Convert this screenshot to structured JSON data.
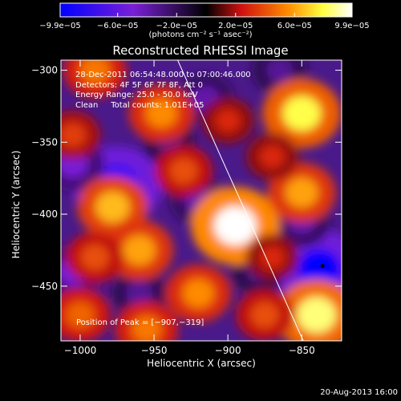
{
  "chart_data": {
    "type": "heatmap",
    "title": "Reconstructed RHESSI Image",
    "xlabel": "Heliocentric X (arcsec)",
    "ylabel": "Heliocentric Y (arcsec)",
    "xlim": [
      -1013,
      -823
    ],
    "ylim": [
      -488,
      -293
    ],
    "x_ticks": [
      -1000,
      -950,
      -900,
      -850
    ],
    "x_tick_labels": [
      "−1000",
      "−950",
      "−900",
      "−850"
    ],
    "y_ticks": [
      -300,
      -350,
      -400,
      -450
    ],
    "y_tick_labels": [
      "−300",
      "−350",
      "−400",
      "−450"
    ],
    "colorbar": {
      "range": [
        -9.9e-05,
        9.9e-05
      ],
      "ticks": [
        -9.9e-05,
        -6e-05,
        -2e-05,
        2e-05,
        6e-05,
        9.9e-05
      ],
      "tick_labels": [
        "−9.9e−05",
        "−6.0e−05",
        "−2.0e−05",
        "2.0e−05",
        "6.0e−05",
        "9.9e−05"
      ],
      "units_label": "(photons cm⁻² s⁻¹ asec⁻²)",
      "colors": [
        "#0000ff",
        "#7a1fd6",
        "#000000",
        "#d01010",
        "#ff8c00",
        "#ffff40",
        "#ffffff"
      ]
    },
    "annotations": [
      "28-Dec-2011 06:54:48.000 to 07:00:46.000",
      "Detectors: 4F 5F 6F 7F 8F, Att 0",
      "Energy Range: 25.0 - 50.0 keV",
      "Clean     Total counts: 1.01E+05"
    ],
    "peak_label": "Position of Peak = [−907,−319]",
    "peak_position": [
      -907,
      -319
    ],
    "limb_line": [
      [
        -934,
        -293
      ],
      [
        -849,
        -488
      ]
    ],
    "hot_spots": [
      {
        "x": -895,
        "y": -408,
        "value": 9.9e-05
      },
      {
        "x": -850,
        "y": -330,
        "value": 8e-05
      },
      {
        "x": -978,
        "y": -395,
        "value": 6.5e-05
      },
      {
        "x": -850,
        "y": -385,
        "value": 6e-05
      },
      {
        "x": -960,
        "y": -425,
        "value": 6e-05
      },
      {
        "x": -840,
        "y": -470,
        "value": 8.5e-05
      },
      {
        "x": -945,
        "y": -330,
        "value": 5.5e-05
      },
      {
        "x": -990,
        "y": -300,
        "value": 5e-05
      },
      {
        "x": -920,
        "y": -455,
        "value": 5.5e-05
      },
      {
        "x": -900,
        "y": -335,
        "value": 3e-05
      },
      {
        "x": -870,
        "y": -360,
        "value": 3e-05
      },
      {
        "x": -1005,
        "y": -345,
        "value": 3.5e-05
      },
      {
        "x": -1000,
        "y": -470,
        "value": 4.5e-05
      },
      {
        "x": -955,
        "y": -480,
        "value": 5e-05
      },
      {
        "x": -875,
        "y": -470,
        "value": 4e-05
      },
      {
        "x": -990,
        "y": -430,
        "value": 4e-05
      },
      {
        "x": -930,
        "y": -370,
        "value": 4e-05
      },
      {
        "x": -870,
        "y": -430,
        "value": 3e-05
      }
    ],
    "cold_spots": [
      {
        "x": -975,
        "y": -380,
        "value": -9.9e-05
      },
      {
        "x": -838,
        "y": -438,
        "value": -9.9e-05
      },
      {
        "x": -1005,
        "y": -365,
        "value": -5e-05
      },
      {
        "x": -1005,
        "y": -440,
        "value": -5e-05
      },
      {
        "x": -850,
        "y": -405,
        "value": -4e-05
      },
      {
        "x": -920,
        "y": -390,
        "value": -4e-05
      },
      {
        "x": -915,
        "y": -320,
        "value": -4e-05
      },
      {
        "x": -960,
        "y": -455,
        "value": -3.5e-05
      },
      {
        "x": -865,
        "y": -300,
        "value": -3.5e-05
      },
      {
        "x": -880,
        "y": -440,
        "value": -3e-05
      },
      {
        "x": -940,
        "y": -350,
        "value": -3e-05
      }
    ],
    "grid": false
  },
  "footer": {
    "timestamp": "20-Aug-2013 16:00"
  }
}
